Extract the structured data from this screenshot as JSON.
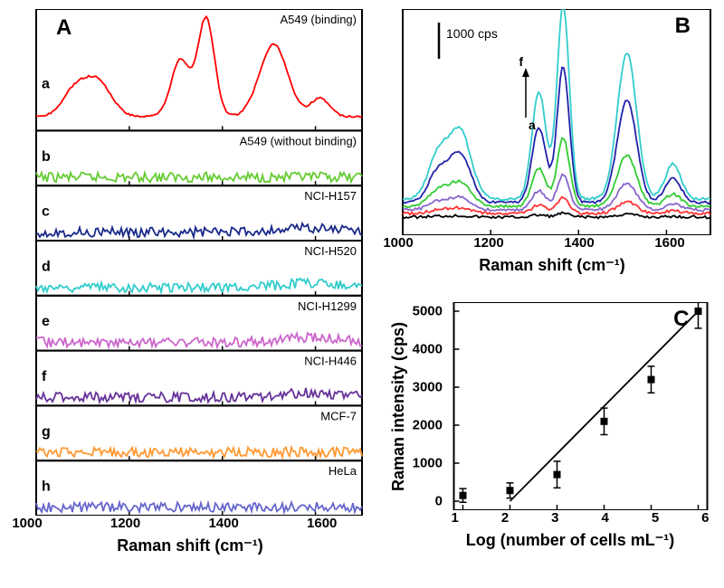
{
  "panelA": {
    "label": "A",
    "xlabel": "Raman shift (cm⁻¹)",
    "xlim": [
      1000,
      1700
    ],
    "xticks": [
      1000,
      1200,
      1400,
      1600
    ],
    "subplots": [
      {
        "id": "a",
        "label": "A549 (binding)",
        "color": "#ff0000",
        "peaks": true
      },
      {
        "id": "b",
        "label": "A549 (without binding)",
        "color": "#66cc33",
        "peaks": false
      },
      {
        "id": "c",
        "label": "NCI-H157",
        "color": "#1a2a8a",
        "peaks": false
      },
      {
        "id": "d",
        "label": "NCI-H520",
        "color": "#33cccc",
        "peaks": false
      },
      {
        "id": "e",
        "label": "NCI-H1299",
        "color": "#cc66cc",
        "peaks": false
      },
      {
        "id": "f",
        "label": "NCI-H446",
        "color": "#663399",
        "peaks": false
      },
      {
        "id": "g",
        "label": "MCF-7",
        "color": "#ff9933",
        "peaks": false
      },
      {
        "id": "h",
        "label": "HeLa",
        "color": "#6666cc",
        "peaks": false
      }
    ]
  },
  "panelB": {
    "label": "B",
    "xlabel": "Raman shift (cm⁻¹)",
    "scale_label": "1000 cps",
    "xlim": [
      1000,
      1700
    ],
    "xticks": [
      1000,
      1200,
      1400,
      1600
    ],
    "arrow_from": "a",
    "arrow_to": "f",
    "traces": [
      {
        "color": "#000000",
        "height": 0.02
      },
      {
        "color": "#ff3333",
        "height": 0.08
      },
      {
        "color": "#8866cc",
        "height": 0.18
      },
      {
        "color": "#33cc33",
        "height": 0.35
      },
      {
        "color": "#2222aa",
        "height": 0.7
      },
      {
        "color": "#33cccc",
        "height": 1.0
      }
    ]
  },
  "panelC": {
    "label": "C",
    "xlabel": "Log (number of cells mL⁻¹)",
    "ylabel": "Raman intensity (cps)",
    "xlim": [
      1,
      6
    ],
    "ylim": [
      0,
      5000
    ],
    "xticks": [
      1,
      2,
      3,
      4,
      5,
      6
    ],
    "yticks": [
      0,
      1000,
      2000,
      3000,
      4000,
      5000
    ],
    "points": [
      {
        "x": 1,
        "y": 150,
        "err": 180
      },
      {
        "x": 2,
        "y": 280,
        "err": 200
      },
      {
        "x": 3,
        "y": 700,
        "err": 350
      },
      {
        "x": 4,
        "y": 2100,
        "err": 350
      },
      {
        "x": 5,
        "y": 3200,
        "err": 350
      },
      {
        "x": 6,
        "y": 5000,
        "err": 450
      }
    ],
    "fit_line": {
      "x1": 2,
      "y1": 0,
      "x2": 6,
      "y2": 5000
    },
    "marker_color": "#000000",
    "line_color": "#000000"
  }
}
